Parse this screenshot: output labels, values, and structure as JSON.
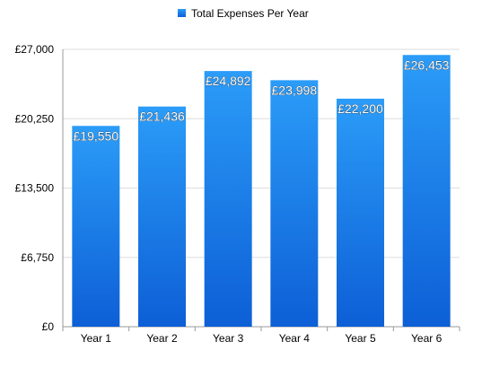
{
  "chart_data": {
    "type": "bar",
    "categories": [
      "Year 1",
      "Year 2",
      "Year 3",
      "Year 4",
      "Year 5",
      "Year 6"
    ],
    "series": [
      {
        "name": "Total Expenses Per Year",
        "values": [
          19550,
          21436,
          24892,
          23998,
          22200,
          26453
        ],
        "labels": [
          "£19,550",
          "£21,436",
          "£24,892",
          "£23,998",
          "£22,200",
          "£26,453"
        ]
      }
    ],
    "yticks": [
      0,
      6750,
      13500,
      20250,
      27000
    ],
    "ytick_labels": [
      "£0",
      "£6,750",
      "£13,500",
      "£20,250",
      "£27,000"
    ],
    "ylim": [
      0,
      27000
    ],
    "grid": true,
    "legend_position": "top-center",
    "colors": {
      "bar_top": "#2b9cf8",
      "bar_bottom": "#0d5fd6",
      "grid": "#dddddd",
      "axis": "#999999"
    }
  }
}
